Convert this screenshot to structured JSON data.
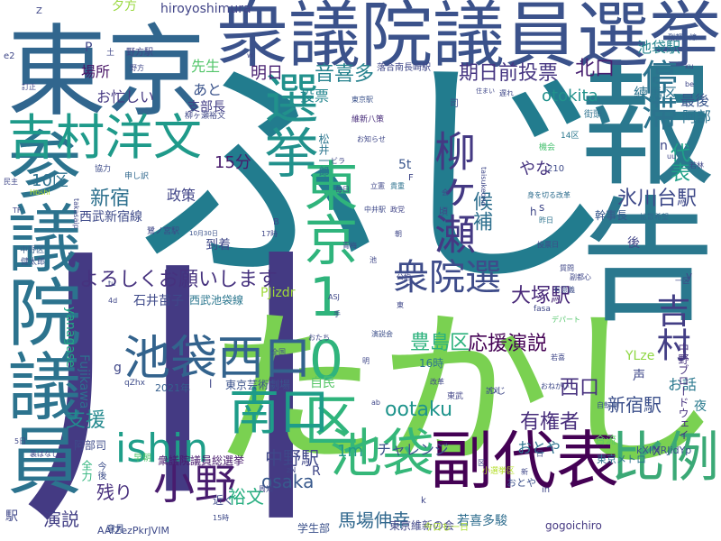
{
  "cloud": {
    "words": [
      {
        "text": "ふじ",
        "color": "#227c8e"
      },
      {
        "text": "川",
        "color": "#443a83"
      },
      {
        "text": "たかし",
        "color": "#7ad151"
      },
      {
        "text": "報告",
        "color": "#2a788e"
      },
      {
        "text": "東京",
        "color": "#31668e"
      },
      {
        "text": "衆議院議員選挙",
        "color": "#3b528b"
      },
      {
        "text": "参議院議員",
        "color": "#2c738e"
      },
      {
        "text": "東京10区",
        "color": "#2fb47c"
      },
      {
        "text": "吉村洋文",
        "color": "#1f9a8a"
      },
      {
        "text": "副代表",
        "color": "#440154"
      },
      {
        "text": "比例",
        "color": "#3ba976"
      },
      {
        "text": "池袋西口",
        "color": "#33638d"
      },
      {
        "text": "選挙",
        "color": "#21918c"
      },
      {
        "text": "池袋",
        "color": "#35b779"
      },
      {
        "text": "南口",
        "color": "#1e9c89"
      },
      {
        "text": "柳ヶ瀬",
        "color": "#443983"
      },
      {
        "text": "ishin",
        "color": "#1f9e89"
      },
      {
        "text": "小野",
        "color": "#481c6e"
      },
      {
        "text": "衆院選",
        "color": "#3e4c8a"
      },
      {
        "text": "停滞",
        "color": "#2c738e"
      },
      {
        "text": "吉村",
        "color": "#433e85"
      },
      {
        "text": "よろしくお願いします",
        "color": "#46327e"
      },
      {
        "text": "大塚駅",
        "color": "#482878"
      },
      {
        "text": "音喜多",
        "color": "#26828e"
      },
      {
        "text": "期日前投票",
        "color": "#453581"
      },
      {
        "text": "北口",
        "color": "#481f70"
      },
      {
        "text": "候補",
        "color": "#2e6f8e"
      },
      {
        "text": "豊島区",
        "color": "#2db27d"
      },
      {
        "text": "応援演説",
        "color": "#440154"
      },
      {
        "text": "新宿",
        "color": "#2d708e"
      },
      {
        "text": "支援",
        "color": "#23898e"
      },
      {
        "text": "有権者",
        "color": "#472d7b"
      },
      {
        "text": "代表",
        "color": "#1fa088"
      },
      {
        "text": "ootaku",
        "color": "#1f948c"
      },
      {
        "text": "氷川台駅",
        "color": "#3e4989"
      },
      {
        "text": "西口",
        "color": "#46307e"
      },
      {
        "text": "新宿駅",
        "color": "#3c508b"
      },
      {
        "text": "馬場伸幸",
        "color": "#31688e"
      },
      {
        "text": "残り",
        "color": "#472f7d"
      },
      {
        "text": "演説",
        "color": "#423f85"
      },
      {
        "text": "中野駅",
        "color": "#3f4788"
      },
      {
        "text": "裕文",
        "color": "#28ae80"
      },
      {
        "text": "osaka",
        "color": "#38598c"
      },
      {
        "text": "10区",
        "color": "#2d718e"
      },
      {
        "text": "政策",
        "color": "#404588"
      },
      {
        "text": "明日",
        "color": "#482071"
      },
      {
        "text": "あと",
        "color": "#3a538b"
      },
      {
        "text": "先生",
        "color": "#52c569"
      },
      {
        "text": "15分",
        "color": "#481a6c"
      },
      {
        "text": "otokita",
        "color": "#21918c"
      },
      {
        "text": "練馬区",
        "color": "#2c738e"
      },
      {
        "text": "最後",
        "color": "#39568c"
      },
      {
        "text": "阿部",
        "color": "#2c728e"
      },
      {
        "text": "池袋駅",
        "color": "#25858e"
      },
      {
        "text": "やな",
        "color": "#46337f"
      },
      {
        "text": "チャレンジ",
        "color": "#3b528b"
      },
      {
        "text": "1m",
        "color": "#1f998a"
      },
      {
        "text": "お話",
        "color": "#2a788e"
      },
      {
        "text": "おとや",
        "color": "#2c728e"
      },
      {
        "text": "お忙しい",
        "color": "#453882"
      },
      {
        "text": "投票",
        "color": "#24868e"
      },
      {
        "text": "支部長",
        "color": "#433e85"
      },
      {
        "text": "場所",
        "color": "#471365"
      },
      {
        "text": "夕方",
        "color": "#98d83e"
      },
      {
        "text": "hiroyoshimura",
        "color": "#414487"
      },
      {
        "text": "Fujikawa",
        "color": "#2e6e8e"
      },
      {
        "text": "yanagase",
        "color": "#22a785"
      },
      {
        "text": "西武新宿線",
        "color": "#3e4a89"
      },
      {
        "text": "到着",
        "color": "#3f4788"
      },
      {
        "text": "石井苗子",
        "color": "#3e4989"
      },
      {
        "text": "西武池袋線",
        "color": "#2a768e"
      },
      {
        "text": "東京芸術劇場",
        "color": "#3b528b"
      },
      {
        "text": "自民",
        "color": "#56c667"
      },
      {
        "text": "若喜多駿",
        "color": "#2e6d8e"
      },
      {
        "text": "東京維新の会",
        "color": "#404688"
      },
      {
        "text": "学生部",
        "color": "#3b518b"
      },
      {
        "text": "gogoichiro",
        "color": "#453882"
      },
      {
        "text": "中野ブロードウェイ",
        "color": "#46327e"
      },
      {
        "text": "夜",
        "color": "#297a8e"
      },
      {
        "text": "後",
        "color": "#414487"
      },
      {
        "text": "幹事長",
        "color": "#38588c"
      },
      {
        "text": "声",
        "color": "#3f4889"
      },
      {
        "text": "5t",
        "color": "#39558c"
      },
      {
        "text": "PJizdr",
        "color": "#a0da39"
      },
      {
        "text": "YLze",
        "color": "#8fd744"
      },
      {
        "text": "kXIMRJidYp",
        "color": "#3b528b"
      },
      {
        "text": "AAfZezPkrJVIM",
        "color": "#3e4a89"
      },
      {
        "text": "衆議院議員総選挙",
        "color": "#481b6d"
      },
      {
        "text": "東京メトロ",
        "color": "#2c718e"
      },
      {
        "text": "合流",
        "color": "#5ec962"
      },
      {
        "text": "松井一郎",
        "color": "#2b758e"
      },
      {
        "text": "駅",
        "color": "#3f4788"
      },
      {
        "text": "意見",
        "color": "#3c4f8a"
      },
      {
        "text": "阿部司",
        "color": "#3e4c8a"
      },
      {
        "text": "全力",
        "color": "#2fb47c"
      },
      {
        "text": "今後",
        "color": "#3d4e8a"
      },
      {
        "text": "近く",
        "color": "#3e4989"
      },
      {
        "text": "2021年",
        "color": "#355f8d"
      },
      {
        "text": "16時",
        "color": "#2b748e"
      },
      {
        "text": "おとや",
        "color": "#3c508b"
      },
      {
        "text": "野方駅",
        "color": "#404688"
      },
      {
        "text": "落合南長崎駅",
        "color": "#3f4788"
      },
      {
        "text": "東京駅",
        "color": "#3b528b"
      },
      {
        "text": "柳ヶ瀬裕文",
        "color": "#3f4788"
      },
      {
        "text": "維新八策",
        "color": "#472c7a"
      },
      {
        "text": "早朝",
        "color": "#50c46a"
      },
      {
        "text": "身を切る改革",
        "color": "#2e6d8e"
      },
      {
        "text": "機会",
        "color": "#46c06f"
      },
      {
        "text": "14区",
        "color": "#2a778e"
      },
      {
        "text": "街頭",
        "color": "#2d718e"
      },
      {
        "text": "鷺ノ宮駅",
        "color": "#3f4788"
      },
      {
        "text": "中野区",
        "color": "#355f8d"
      },
      {
        "text": "健太郎",
        "color": "#3b528b"
      },
      {
        "text": "立憲",
        "color": "#3f4788"
      },
      {
        "text": "貴重",
        "color": "#2c728e"
      },
      {
        "text": "申し訳",
        "color": "#31688e"
      },
      {
        "text": "協力",
        "color": "#3e4c8a"
      },
      {
        "text": "有意義",
        "color": "#3d4e8a"
      },
      {
        "text": "質問",
        "color": "#3f4788"
      },
      {
        "text": "副都心",
        "color": "#3f4788"
      },
      {
        "text": "拡散希望",
        "color": "#31688e"
      },
      {
        "text": "投票日",
        "color": "#3e4a89"
      },
      {
        "text": "演説会",
        "color": "#3c4f8a"
      },
      {
        "text": "デパート",
        "color": "#52c569"
      },
      {
        "text": "自転車",
        "color": "#3b528b"
      },
      {
        "text": "東武",
        "color": "#414487"
      },
      {
        "text": "小選挙区",
        "color": "#b5de2b"
      },
      {
        "text": "今日も一日",
        "color": "#addc30"
      },
      {
        "text": "政党",
        "color": "#414487"
      },
      {
        "text": "中井駅",
        "color": "#3e4989"
      },
      {
        "text": "昨日",
        "color": "#2c728e"
      },
      {
        "text": "全国",
        "color": "#3e4a89"
      },
      {
        "text": "訴え",
        "color": "#3c508b"
      },
      {
        "text": "つじ",
        "color": "#3f4788"
      },
      {
        "text": "改革",
        "color": "#3f4788"
      },
      {
        "text": "裏ばなし",
        "color": "#3f4788"
      },
      {
        "text": "おねがい",
        "color": "#3e4989"
      },
      {
        "text": "10月30日",
        "color": "#3b528b"
      },
      {
        "text": "17時",
        "color": "#3f4788"
      },
      {
        "text": "15時",
        "color": "#3e4a89"
      },
      {
        "text": "5日",
        "color": "#3f4788"
      },
      {
        "text": "毎日",
        "color": "#3e4c8a"
      },
      {
        "text": "民主",
        "color": "#3f4788"
      },
      {
        "text": "青梅",
        "color": "#3f4788"
      },
      {
        "text": "副都心線",
        "color": "#3b528b"
      },
      {
        "text": "taisukeono",
        "color": "#3f4788"
      },
      {
        "text": "Hbshi",
        "color": "#b0dd2f"
      },
      {
        "text": "takasaip",
        "color": "#3f4788"
      },
      {
        "text": "ASJ",
        "color": "#3f4788"
      },
      {
        "text": "qZhx",
        "color": "#3e4c8a"
      },
      {
        "text": "fasa",
        "color": "#3f4788"
      },
      {
        "text": "210",
        "color": "#3e4a89"
      },
      {
        "text": "n",
        "color": "#3f4788"
      },
      {
        "text": "F",
        "color": "#3f4788"
      },
      {
        "text": "h",
        "color": "#3f4788"
      },
      {
        "text": "s",
        "color": "#3f4788"
      },
      {
        "text": "y",
        "color": "#3f4788"
      },
      {
        "text": "R",
        "color": "#3f4788"
      },
      {
        "text": "X",
        "color": "#3f4788"
      },
      {
        "text": "g",
        "color": "#3f4788"
      },
      {
        "text": "B",
        "color": "#3f4788"
      },
      {
        "text": "P",
        "color": "#3f4788"
      },
      {
        "text": "Z",
        "color": "#3f4788"
      },
      {
        "text": "e2",
        "color": "#3f4788"
      },
      {
        "text": "ab",
        "color": "#3f4788"
      },
      {
        "text": "zN",
        "color": "#3f4788"
      },
      {
        "text": "in",
        "color": "#3f4788"
      },
      {
        "text": "k",
        "color": "#3f4788"
      },
      {
        "text": "l",
        "color": "#3f4788"
      },
      {
        "text": "司",
        "color": "#3f4788"
      },
      {
        "text": "会",
        "color": "#3f4788"
      },
      {
        "text": "頃",
        "color": "#3f4788"
      },
      {
        "text": "周知",
        "color": "#3f4788"
      },
      {
        "text": "訂正",
        "color": "#3f4788"
      },
      {
        "text": "野方",
        "color": "#3f4788"
      },
      {
        "text": "お知らせ",
        "color": "#3f4788"
      },
      {
        "text": "遅れ",
        "color": "#3f4788"
      },
      {
        "text": "土",
        "color": "#3f4788"
      },
      {
        "text": "若喜",
        "color": "#3f4788"
      },
      {
        "text": "一区",
        "color": "#3f4788"
      },
      {
        "text": "ビラ",
        "color": "#3f4788"
      },
      {
        "text": "朝",
        "color": "#3f4788"
      },
      {
        "text": "手",
        "color": "#3f4788"
      },
      {
        "text": "公約",
        "color": "#3f4788"
      },
      {
        "text": "明",
        "color": "#3f4788"
      },
      {
        "text": "おたち",
        "color": "#3f4788"
      },
      {
        "text": "住まい",
        "color": "#3f4788"
      },
      {
        "text": "若林",
        "color": "#3f4788"
      },
      {
        "text": "東",
        "color": "#3f4788"
      },
      {
        "text": "池",
        "color": "#3f4788"
      },
      {
        "text": "4d",
        "color": "#3f4788"
      },
      {
        "text": "tu",
        "color": "#3f4788"
      },
      {
        "text": "w",
        "color": "#3f4788"
      },
      {
        "text": "uu",
        "color": "#3f4788"
      },
      {
        "text": "ku",
        "color": "#3f4788"
      },
      {
        "text": "be",
        "color": "#3f4788"
      },
      {
        "text": "TF",
        "color": "#3f4788"
      },
      {
        "text": "区",
        "color": "#3f4788"
      },
      {
        "text": "日",
        "color": "#3f4788"
      },
      {
        "text": "新",
        "color": "#3f4788"
      }
    ]
  }
}
